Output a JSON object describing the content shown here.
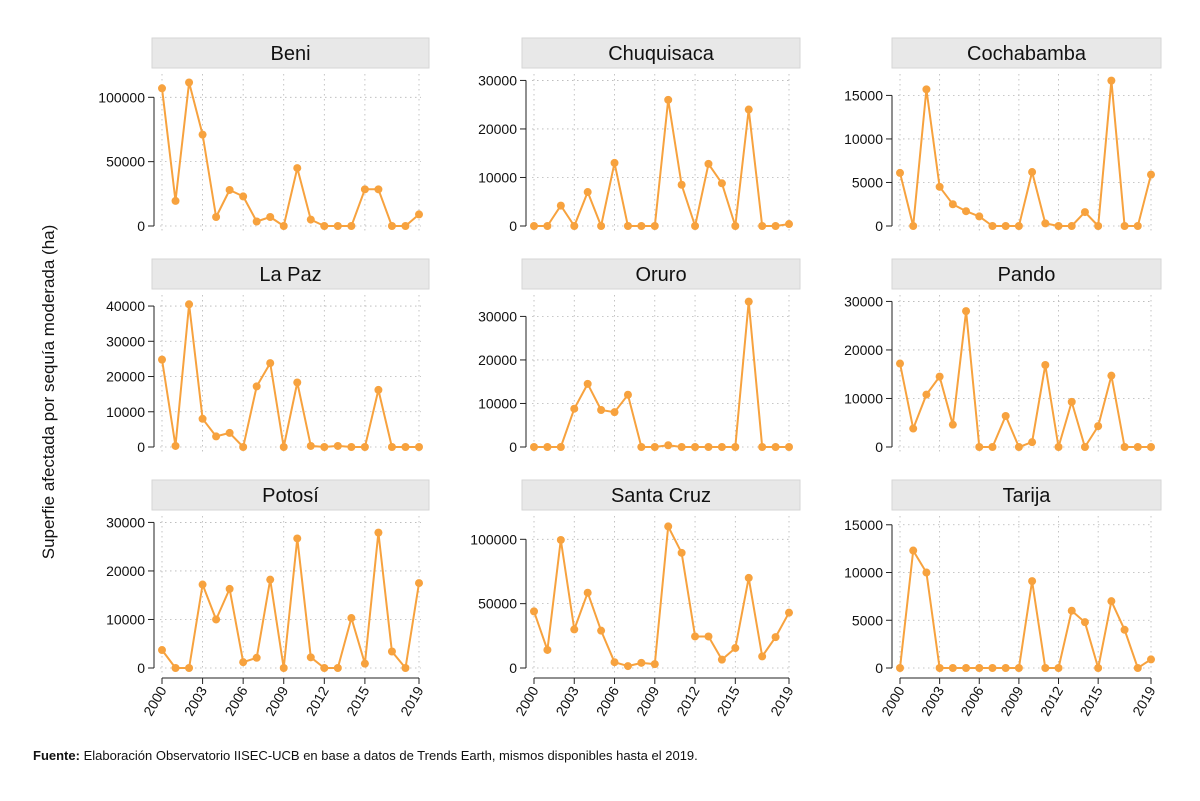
{
  "colors": {
    "series": "#f7a23e",
    "strip": "#e8e8e8",
    "strip_border": "#d6d6d6",
    "grid": "#b5b5b5",
    "axis": "#222222"
  },
  "chart_data": {
    "type": "line",
    "ylabel": "Superfie afectada por sequía moderada (ha)",
    "xlabel": "",
    "x": [
      2000,
      2001,
      2002,
      2003,
      2004,
      2005,
      2006,
      2007,
      2008,
      2009,
      2010,
      2011,
      2012,
      2013,
      2014,
      2015,
      2016,
      2017,
      2018,
      2019
    ],
    "xticks": [
      "2000",
      "2003",
      "2006",
      "2009",
      "2012",
      "2015",
      "2019"
    ],
    "panels": [
      {
        "name": "Beni",
        "ylim": [
          0,
          115000
        ],
        "yticks": [
          0,
          50000,
          100000
        ],
        "ytick_labels": [
          "0",
          "50000",
          "100000"
        ],
        "values": [
          107000,
          19500,
          111500,
          71000,
          7000,
          28000,
          23000,
          3500,
          7000,
          0,
          45000,
          5000,
          0,
          0,
          0,
          28500,
          28500,
          0,
          0,
          9000
        ]
      },
      {
        "name": "Chuquisaca",
        "ylim": [
          0,
          30500
        ],
        "yticks": [
          0,
          10000,
          20000,
          30000
        ],
        "ytick_labels": [
          "0",
          "10000",
          "20000",
          "30000"
        ],
        "values": [
          0,
          0,
          4200,
          0,
          7000,
          0,
          13000,
          0,
          0,
          0,
          26000,
          8500,
          0,
          12800,
          8800,
          0,
          24000,
          0,
          0,
          400
        ]
      },
      {
        "name": "Cochabamba",
        "ylim": [
          0,
          17000
        ],
        "yticks": [
          0,
          5000,
          10000,
          15000
        ],
        "ytick_labels": [
          "0",
          "5000",
          "10000",
          "15000"
        ],
        "values": [
          6100,
          0,
          15700,
          4500,
          2500,
          1700,
          1100,
          0,
          0,
          0,
          6200,
          300,
          0,
          0,
          1600,
          0,
          16700,
          0,
          0,
          5900
        ]
      },
      {
        "name": "La Paz",
        "ylim": [
          0,
          42000
        ],
        "yticks": [
          0,
          10000,
          20000,
          30000,
          40000
        ],
        "ytick_labels": [
          "0",
          "10000",
          "20000",
          "30000",
          "40000"
        ],
        "values": [
          24800,
          300,
          40500,
          8000,
          3000,
          4000,
          0,
          17200,
          23800,
          0,
          18300,
          300,
          0,
          300,
          0,
          0,
          16200,
          0,
          0,
          0
        ]
      },
      {
        "name": "Oruro",
        "ylim": [
          0,
          34000
        ],
        "yticks": [
          0,
          10000,
          20000,
          30000
        ],
        "ytick_labels": [
          "0",
          "10000",
          "20000",
          "30000"
        ],
        "values": [
          0,
          0,
          0,
          8800,
          14500,
          8500,
          8000,
          12000,
          0,
          0,
          400,
          0,
          0,
          0,
          0,
          0,
          33400,
          0,
          0,
          0
        ]
      },
      {
        "name": "Pando",
        "ylim": [
          0,
          30500
        ],
        "yticks": [
          0,
          10000,
          20000,
          30000
        ],
        "ytick_labels": [
          "0",
          "10000",
          "20000",
          "30000"
        ],
        "values": [
          17200,
          3800,
          10800,
          14500,
          4600,
          28000,
          0,
          0,
          6400,
          0,
          1000,
          16900,
          0,
          9300,
          0,
          4300,
          14700,
          0,
          0,
          0
        ]
      },
      {
        "name": "Potosí",
        "ylim": [
          0,
          30500
        ],
        "yticks": [
          0,
          10000,
          20000,
          30000
        ],
        "ytick_labels": [
          "0",
          "10000",
          "20000",
          "30000"
        ],
        "values": [
          3700,
          0,
          0,
          17200,
          10000,
          16300,
          1200,
          2100,
          18200,
          0,
          26700,
          2200,
          0,
          0,
          10300,
          900,
          27900,
          3400,
          0,
          17500
        ]
      },
      {
        "name": "Santa Cruz",
        "ylim": [
          0,
          115000
        ],
        "yticks": [
          0,
          50000,
          100000
        ],
        "ytick_labels": [
          "0",
          "50000",
          "100000"
        ],
        "values": [
          44000,
          14000,
          99500,
          30000,
          58500,
          29000,
          4500,
          1500,
          4000,
          3000,
          110000,
          89500,
          24500,
          24500,
          6500,
          15500,
          70000,
          9000,
          24000,
          43000
        ]
      },
      {
        "name": "Tarija",
        "ylim": [
          0,
          15500
        ],
        "yticks": [
          0,
          5000,
          10000,
          15000
        ],
        "ytick_labels": [
          "0",
          "5000",
          "10000",
          "15000"
        ],
        "values": [
          0,
          12300,
          10000,
          0,
          0,
          0,
          0,
          0,
          0,
          0,
          9100,
          0,
          0,
          6000,
          4800,
          0,
          7000,
          4000,
          0,
          900
        ]
      }
    ]
  },
  "footer": {
    "source_label": "Fuente:",
    "source_text": " Elaboración Observatorio IISEC-UCB en base a datos de Trends Earth, mismos disponibles hasta el 2019."
  }
}
